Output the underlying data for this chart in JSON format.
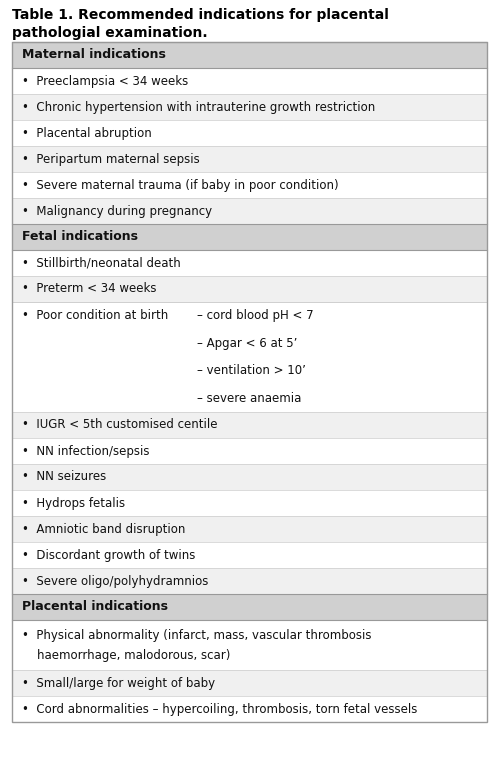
{
  "title_line1": "Table 1. Recommended indications for placental",
  "title_line2": "pathologial examination.",
  "bg_color": "#ffffff",
  "header_bg": "#d0d0d0",
  "row_bg_white": "#ffffff",
  "row_bg_gray": "#f0f0f0",
  "border_color": "#999999",
  "sep_color": "#cccccc",
  "text_color": "#111111",
  "title_fontsize": 10.0,
  "header_fontsize": 9.0,
  "item_fontsize": 8.5,
  "sections": [
    {
      "type": "header",
      "text": "Maternal indications"
    },
    {
      "type": "item",
      "text": "•  Preeclampsia < 34 weeks",
      "bg": "white"
    },
    {
      "type": "item",
      "text": "•  Chronic hypertension with intrauterine growth restriction",
      "bg": "gray"
    },
    {
      "type": "item",
      "text": "•  Placental abruption",
      "bg": "white"
    },
    {
      "type": "item",
      "text": "•  Peripartum maternal sepsis",
      "bg": "gray"
    },
    {
      "type": "item",
      "text": "•  Severe maternal trauma (if baby in poor condition)",
      "bg": "white"
    },
    {
      "type": "item",
      "text": "•  Malignancy during pregnancy",
      "bg": "gray"
    },
    {
      "type": "header",
      "text": "Fetal indications"
    },
    {
      "type": "item",
      "text": "•  Stillbirth/neonatal death",
      "bg": "white"
    },
    {
      "type": "item",
      "text": "•  Preterm < 34 weeks",
      "bg": "gray"
    },
    {
      "type": "item_multi",
      "left": "•  Poor condition at birth",
      "right_lines": [
        "– cord blood pH < 7",
        "– Apgar < 6 at 5’",
        "– ventilation > 10’",
        "– severe anaemia"
      ],
      "bg": "white"
    },
    {
      "type": "item",
      "text": "•  IUGR < 5th customised centile",
      "bg": "gray"
    },
    {
      "type": "item",
      "text": "•  NN infection/sepsis",
      "bg": "white"
    },
    {
      "type": "item",
      "text": "•  NN seizures",
      "bg": "gray"
    },
    {
      "type": "item",
      "text": "•  Hydrops fetalis",
      "bg": "white"
    },
    {
      "type": "item",
      "text": "•  Amniotic band disruption",
      "bg": "gray"
    },
    {
      "type": "item",
      "text": "•  Discordant growth of twins",
      "bg": "white"
    },
    {
      "type": "item",
      "text": "•  Severe oligo/polyhydramnios",
      "bg": "gray"
    },
    {
      "type": "header",
      "text": "Placental indications"
    },
    {
      "type": "item_wrap",
      "line1": "•  Physical abnormality (infarct, mass, vascular thrombosis",
      "line2": "    haemorrhage, malodorous, scar)",
      "bg": "white"
    },
    {
      "type": "item",
      "text": "•  Small/large for weight of baby",
      "bg": "gray"
    },
    {
      "type": "item_wrap",
      "line1": "•  Cord abnormalities – hypercoiling, thrombosis, torn fetal vessels",
      "line2": null,
      "bg": "white"
    }
  ]
}
